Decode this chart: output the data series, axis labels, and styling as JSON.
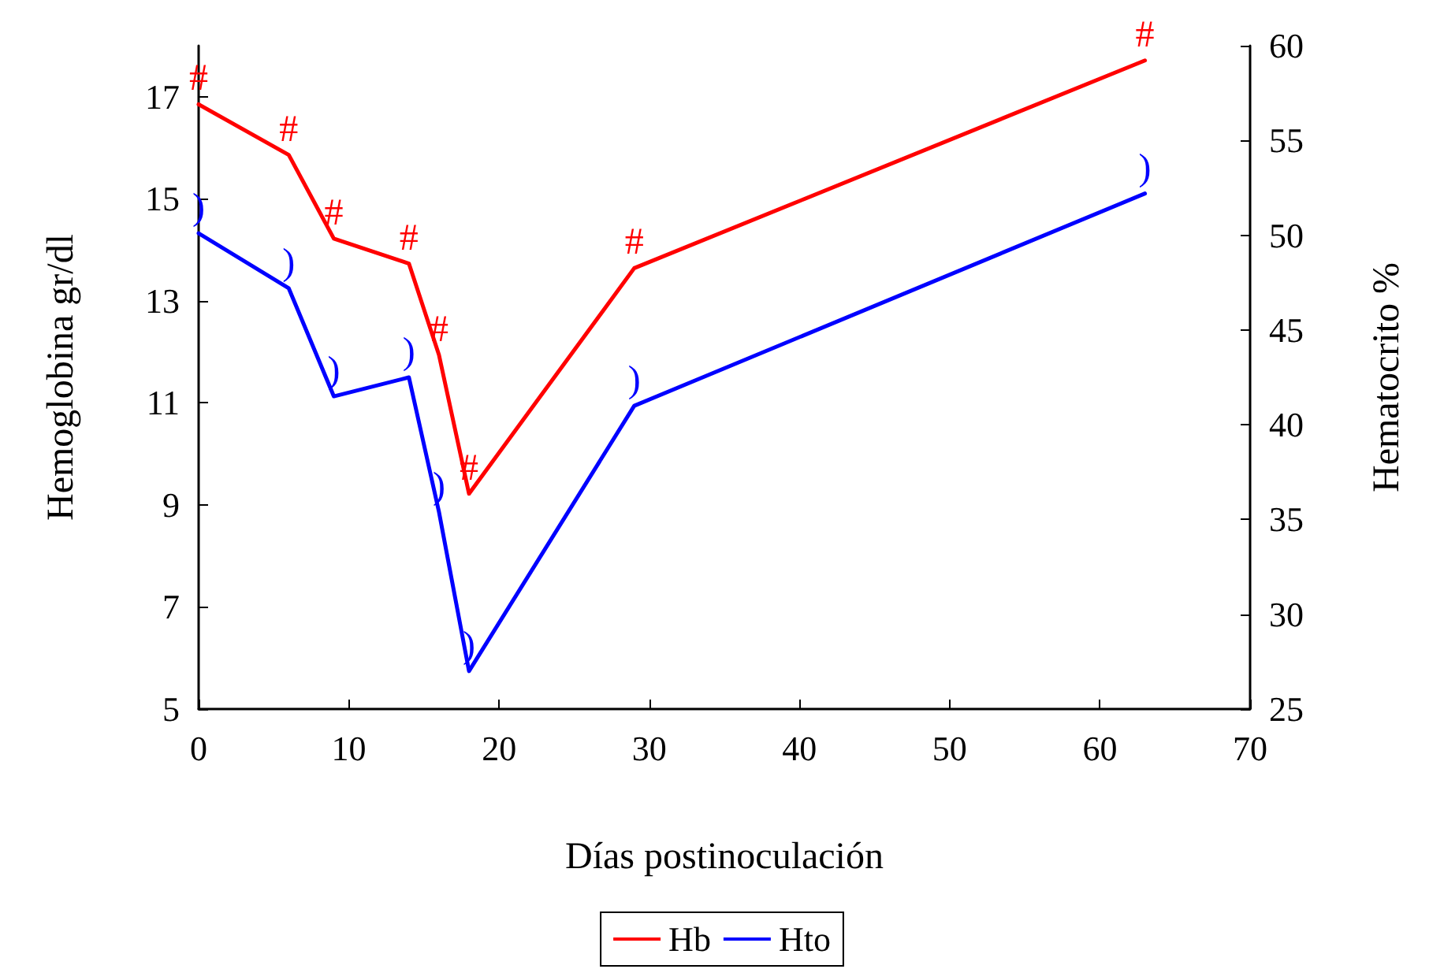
{
  "chart_data": {
    "type": "line",
    "xlabel": "Días postinoculación",
    "ylabel": "Hemoglobina gr/dl",
    "y2label": "Hematocrito %",
    "x": [
      0,
      6,
      9,
      14,
      16,
      18,
      29,
      63
    ],
    "series": [
      {
        "name": "Hb",
        "color": "#ff0000",
        "values": [
          16.85,
          15.86,
          14.22,
          13.73,
          11.94,
          9.22,
          13.64,
          17.71
        ],
        "value_labels": [
          "#",
          "#",
          "#",
          "#",
          "#",
          "#",
          "#",
          "#"
        ]
      },
      {
        "name": "Hto",
        "color": "#0000ff",
        "axis": "y2",
        "values": [
          50.1,
          47.2,
          41.5,
          42.5,
          35.4,
          27.0,
          41.0,
          52.2
        ],
        "value_labels": [
          ")",
          ")",
          ")",
          ")",
          ")",
          ")",
          ")",
          ")"
        ]
      }
    ],
    "xlim": [
      0,
      70
    ],
    "xticks": [
      0,
      10,
      20,
      30,
      40,
      50,
      60,
      70
    ],
    "ylim": [
      5,
      18
    ],
    "yticks": [
      5,
      7,
      9,
      11,
      13,
      15,
      17
    ],
    "y2lim": [
      25,
      60
    ],
    "y2ticks": [
      25,
      30,
      35,
      40,
      45,
      50,
      55,
      60
    ],
    "grid": false,
    "legend": "bottom",
    "marker": "none",
    "line_style": "solid"
  }
}
